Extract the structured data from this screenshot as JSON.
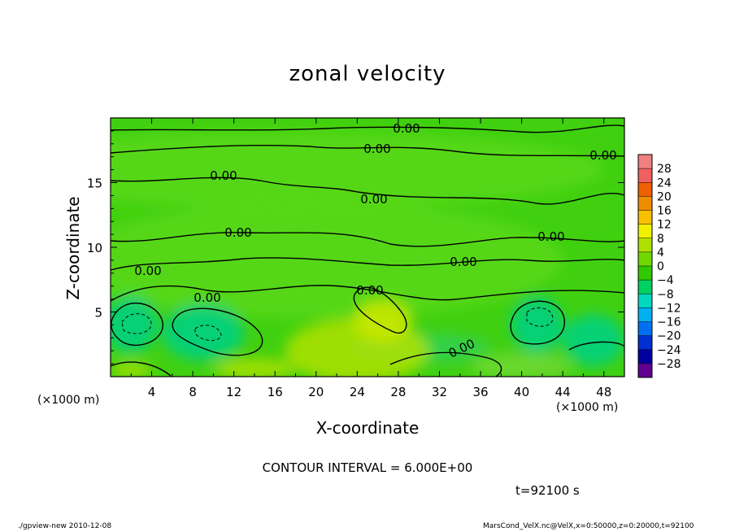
{
  "chart_data": {
    "type": "heatmap",
    "title": "zonal velocity",
    "xlabel": "X-coordinate",
    "ylabel": "Z-coordinate",
    "x_unit_label": "(×1000 m)",
    "xlim": [
      0,
      50
    ],
    "ylim": [
      0,
      20
    ],
    "x_ticks": [
      "4",
      "8",
      "12",
      "16",
      "20",
      "24",
      "28",
      "32",
      "36",
      "40",
      "44",
      "48"
    ],
    "y_ticks": [
      "5",
      "10",
      "15"
    ],
    "contour_interval_text": "CONTOUR INTERVAL = 6.000E+00",
    "contour_labels": [
      "0.00",
      "0.00",
      "0.00",
      "0.00",
      "0.00",
      "0.00",
      "0.00",
      "0.00",
      "0.00",
      "0.00",
      "0.00",
      "0.00"
    ],
    "colorbar": {
      "levels": [
        "28",
        "24",
        "20",
        "16",
        "12",
        "8",
        "4",
        "0",
        "−4",
        "−8",
        "−12",
        "−16",
        "−20",
        "−24",
        "−28"
      ],
      "colors": [
        "#f08080",
        "#f06060",
        "#f06000",
        "#f08c00",
        "#f8c000",
        "#f0f000",
        "#b0e000",
        "#70d800",
        "#30c800",
        "#00d060",
        "#00d8c0",
        "#00b0f0",
        "#0070f0",
        "#0030d0",
        "#0000a0",
        "#600090"
      ]
    },
    "field_colors": {
      "background": "#40d010",
      "near_zero": "#58d818",
      "positive": "#a8e000",
      "negative": "#00d080"
    }
  },
  "time_label": "t=92100 s",
  "footer": {
    "left": "./gpview-new   2010-12-08",
    "right": "MarsCond_VelX.nc@VelX,x=0:50000,z=0:20000,t=92100"
  }
}
